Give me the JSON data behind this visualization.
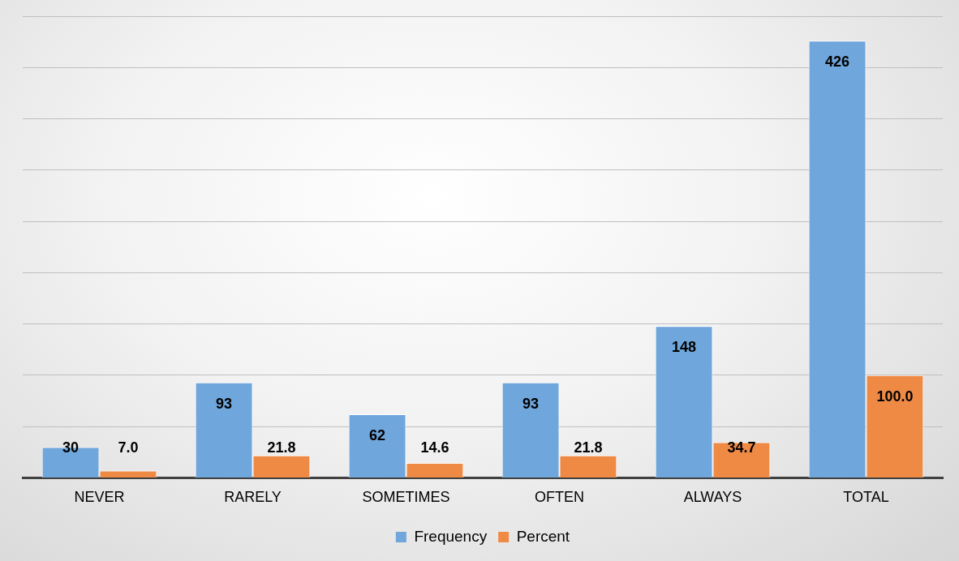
{
  "chart_data": {
    "type": "bar",
    "categories": [
      "NEVER",
      "RARELY",
      "SOMETIMES",
      "OFTEN",
      "ALWAYS",
      "TOTAL"
    ],
    "series": [
      {
        "name": "Frequency",
        "color": "#6fa6db",
        "values": [
          30,
          93,
          62,
          93,
          148,
          426
        ],
        "value_labels": [
          "30",
          "93",
          "62",
          "93",
          "148",
          "426"
        ]
      },
      {
        "name": "Percent",
        "color": "#ef8a45",
        "values": [
          7.0,
          21.8,
          14.6,
          21.8,
          34.7,
          100.0
        ],
        "value_labels": [
          "7.0",
          "21.8",
          "14.6",
          "21.8",
          "34.7",
          "100.0"
        ]
      }
    ],
    "ylim": [
      0,
      450
    ],
    "yticks": [
      {
        "value": 0,
        "label": null
      },
      {
        "value": 50,
        "label": null
      },
      {
        "value": 100,
        "label": null
      },
      {
        "value": 150,
        "label": null
      },
      {
        "value": 200,
        "label": null
      },
      {
        "value": 250,
        "label": null
      },
      {
        "value": 300,
        "label": null
      },
      {
        "value": 350,
        "label": null
      },
      {
        "value": 400,
        "label": null
      },
      {
        "value": 450,
        "label": null
      }
    ],
    "grid": "y",
    "legend": "bottom",
    "tick_labels": "x"
  }
}
